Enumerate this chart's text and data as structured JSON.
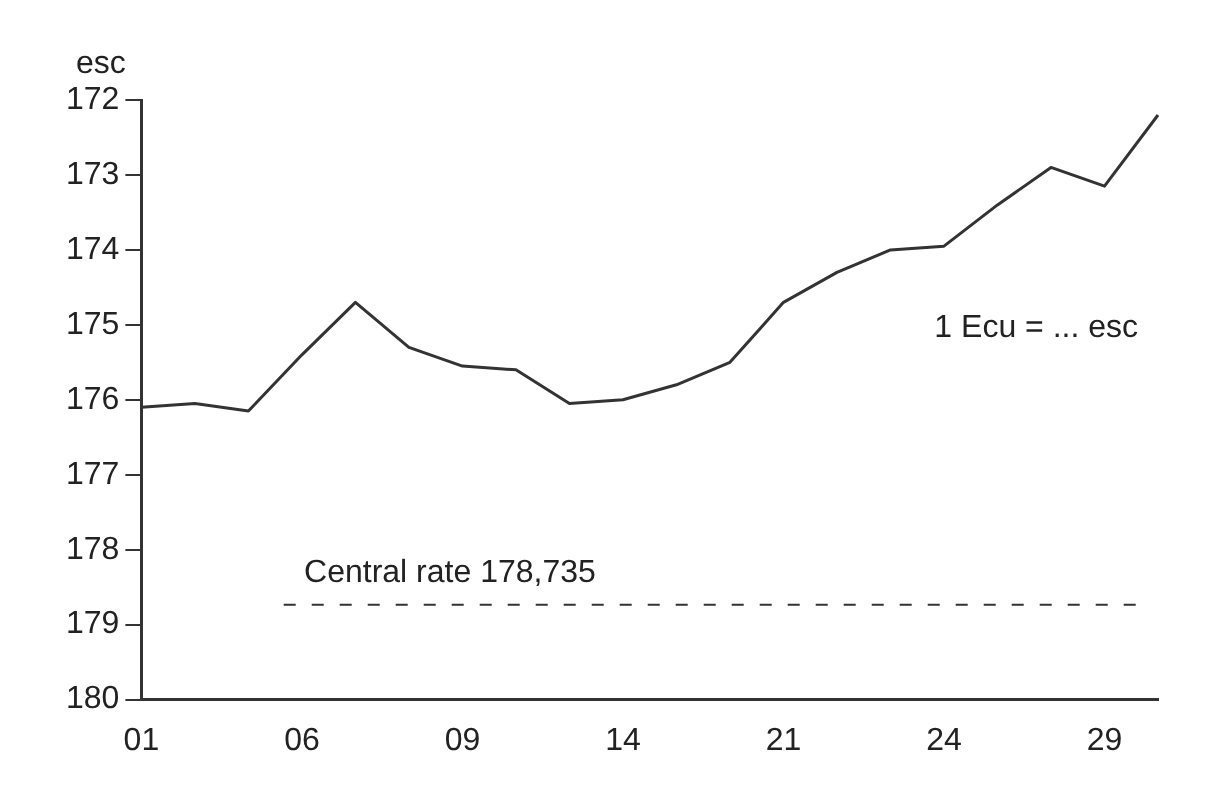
{
  "chart_data": {
    "type": "line",
    "ylabel": "esc",
    "categories": [
      "01",
      null,
      null,
      "06",
      null,
      null,
      "09",
      null,
      null,
      "14",
      null,
      null,
      "21",
      null,
      null,
      "24",
      null,
      null,
      "29",
      null
    ],
    "series": [
      {
        "color": "#333333",
        "values": [
          176.1,
          176.05,
          176.15,
          175.4,
          174.7,
          175.3,
          175.55,
          175.6,
          176.05,
          176.0,
          175.8,
          175.5,
          174.7,
          174.3,
          174.0,
          173.95,
          173.4,
          172.9,
          173.15,
          172.2
        ]
      }
    ],
    "ylim": [
      180,
      172
    ],
    "yticks": [
      172,
      173,
      174,
      175,
      176,
      177,
      178,
      179,
      180
    ],
    "ref_lines": [
      {
        "axis": "y",
        "value": 178.735,
        "label": "Central rate 178,735",
        "line_style": "dashed",
        "color": "#333333"
      }
    ],
    "annotations": [
      "1 Ecu = ... esc"
    ],
    "grid": false,
    "legend": false,
    "marker": "none",
    "line_style": "solid"
  }
}
